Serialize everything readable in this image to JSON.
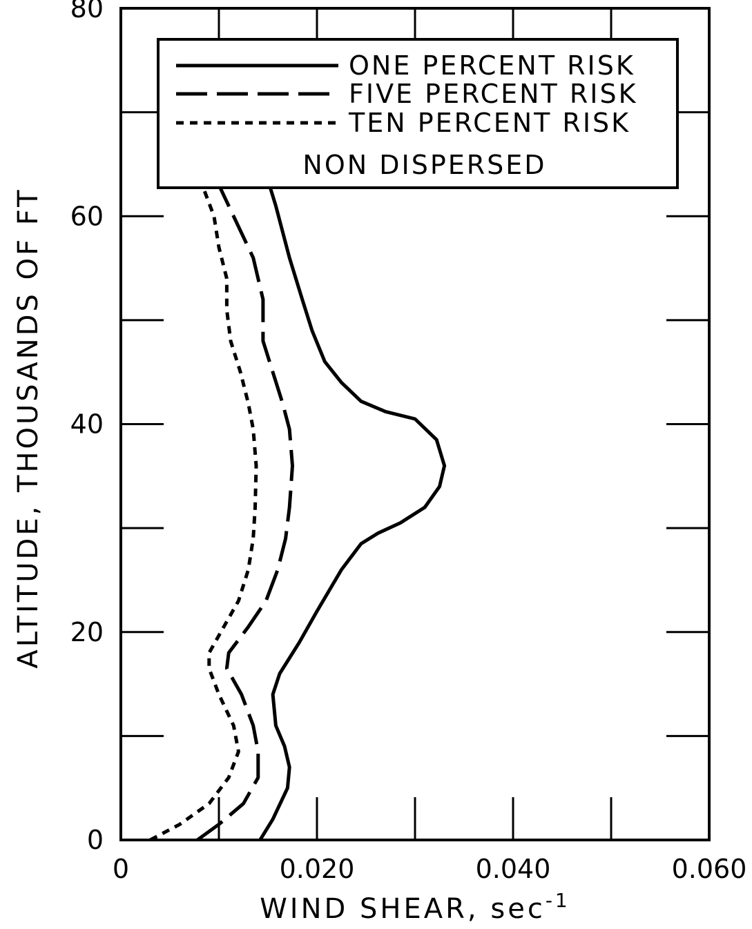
{
  "chart_data": {
    "type": "line",
    "xlabel": "WIND SHEAR, sec",
    "xlabel_sup": "-1",
    "ylabel": "ALTITUDE, THOUSANDS OF FT",
    "xlim": [
      0,
      0.06
    ],
    "ylim": [
      0,
      80
    ],
    "x_ticks": [
      0,
      0.01,
      0.02,
      0.03,
      0.04,
      0.05,
      0.06
    ],
    "x_tick_labels": [
      "0",
      "",
      "0.020",
      "",
      "0.040",
      "",
      "0.060"
    ],
    "y_ticks": [
      0,
      10,
      20,
      30,
      40,
      50,
      60,
      70,
      80
    ],
    "y_tick_labels": [
      "0",
      "",
      "20",
      "",
      "40",
      "",
      "60",
      "",
      "80"
    ],
    "grid": false,
    "legend_position": "top",
    "legend_note": "NON DISPERSED",
    "series": [
      {
        "name": "ONE PERCENT RISK",
        "style": "solid",
        "points": [
          [
            0.0142,
            0
          ],
          [
            0.0155,
            2
          ],
          [
            0.017,
            5
          ],
          [
            0.0172,
            7
          ],
          [
            0.0167,
            9
          ],
          [
            0.0158,
            11
          ],
          [
            0.0155,
            14
          ],
          [
            0.0162,
            16
          ],
          [
            0.0182,
            19
          ],
          [
            0.02,
            22
          ],
          [
            0.0225,
            26
          ],
          [
            0.0245,
            28.5
          ],
          [
            0.0262,
            29.5
          ],
          [
            0.0285,
            30.5
          ],
          [
            0.031,
            32
          ],
          [
            0.0325,
            34
          ],
          [
            0.033,
            36
          ],
          [
            0.0322,
            38.5
          ],
          [
            0.03,
            40.5
          ],
          [
            0.027,
            41.2
          ],
          [
            0.0245,
            42.2
          ],
          [
            0.0225,
            44
          ],
          [
            0.0208,
            46
          ],
          [
            0.0195,
            49
          ],
          [
            0.0185,
            52
          ],
          [
            0.0172,
            56
          ],
          [
            0.0158,
            61
          ],
          [
            0.0145,
            65
          ]
        ]
      },
      {
        "name": "FIVE PERCENT RISK",
        "style": "dashed",
        "points": [
          [
            0.0078,
            0
          ],
          [
            0.01,
            1.5
          ],
          [
            0.0125,
            3.5
          ],
          [
            0.014,
            6
          ],
          [
            0.014,
            8.5
          ],
          [
            0.0135,
            11
          ],
          [
            0.0123,
            14
          ],
          [
            0.0108,
            16.5
          ],
          [
            0.011,
            18
          ],
          [
            0.013,
            20.5
          ],
          [
            0.0148,
            23
          ],
          [
            0.016,
            26
          ],
          [
            0.0168,
            29
          ],
          [
            0.0172,
            32
          ],
          [
            0.0175,
            36
          ],
          [
            0.0172,
            39.5
          ],
          [
            0.0165,
            42
          ],
          [
            0.0155,
            45
          ],
          [
            0.0145,
            48
          ],
          [
            0.0145,
            52
          ],
          [
            0.0135,
            56
          ],
          [
            0.0115,
            60
          ],
          [
            0.01,
            63
          ],
          [
            0.0088,
            65
          ]
        ]
      },
      {
        "name": "TEN PERCENT RISK",
        "style": "dotted",
        "points": [
          [
            0.003,
            0
          ],
          [
            0.006,
            1.5
          ],
          [
            0.009,
            3.5
          ],
          [
            0.011,
            6
          ],
          [
            0.012,
            8.5
          ],
          [
            0.0115,
            11
          ],
          [
            0.01,
            14
          ],
          [
            0.009,
            16.5
          ],
          [
            0.009,
            18
          ],
          [
            0.0105,
            20.5
          ],
          [
            0.012,
            23
          ],
          [
            0.013,
            26
          ],
          [
            0.0135,
            29
          ],
          [
            0.0137,
            32
          ],
          [
            0.0138,
            36
          ],
          [
            0.0135,
            39.5
          ],
          [
            0.013,
            42
          ],
          [
            0.0122,
            45
          ],
          [
            0.0112,
            48
          ],
          [
            0.0108,
            51
          ],
          [
            0.0108,
            54
          ],
          [
            0.01,
            57
          ],
          [
            0.0095,
            60
          ],
          [
            0.0083,
            63
          ],
          [
            0.007,
            65
          ]
        ]
      }
    ]
  }
}
